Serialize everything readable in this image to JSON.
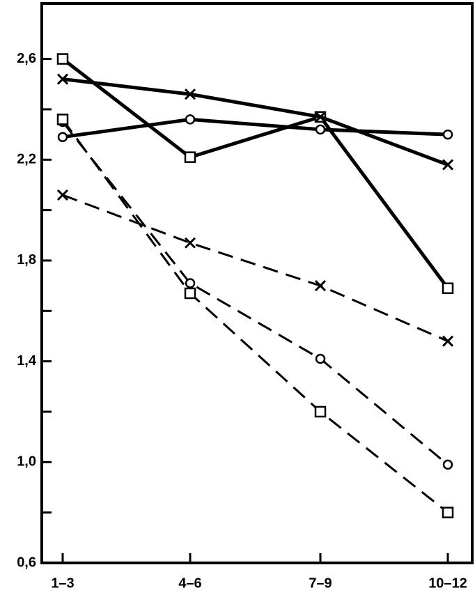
{
  "chart_data": {
    "type": "line",
    "categories": [
      "1–3",
      "4–6",
      "7–9",
      "10–12"
    ],
    "series": [
      {
        "color": "#000000",
        "marker": "square",
        "dash": false,
        "values": [
          2.6,
          2.21,
          2.37,
          1.69
        ]
      },
      {
        "color": "#000000",
        "marker": "x",
        "dash": false,
        "values": [
          2.52,
          2.46,
          2.37,
          2.18
        ]
      },
      {
        "color": "#000000",
        "marker": "circle",
        "dash": false,
        "values": [
          2.29,
          2.36,
          2.32,
          2.3
        ]
      },
      {
        "color": "#000000",
        "marker": "x",
        "dash": true,
        "values": [
          2.06,
          1.87,
          1.7,
          1.48
        ]
      },
      {
        "color": "#000000",
        "marker": "circle",
        "dash": true,
        "values": [
          2.35,
          1.71,
          1.41,
          0.99
        ]
      },
      {
        "color": "#000000",
        "marker": "square",
        "dash": true,
        "values": [
          2.36,
          1.67,
          1.2,
          0.8
        ]
      }
    ],
    "ylim": [
      0.6,
      2.82
    ],
    "yticks": [
      {
        "value": 0.6,
        "label": "0,6"
      },
      {
        "value": 1.0,
        "label": "1,0"
      },
      {
        "value": 1.4,
        "label": "1,4"
      },
      {
        "value": 1.8,
        "label": "1,8"
      },
      {
        "value": 2.2,
        "label": "2,2"
      },
      {
        "value": 2.6,
        "label": "2,6"
      }
    ],
    "yminorticks": [
      0.8,
      1.2,
      1.6,
      2.0,
      2.4
    ],
    "grid": false
  }
}
